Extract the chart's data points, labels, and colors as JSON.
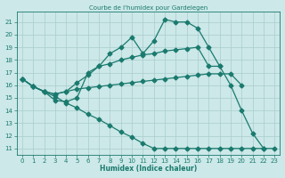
{
  "title": "Courbe de l'humidex pour Gardelegen",
  "xlabel": "Humidex (Indice chaleur)",
  "background_color": "#cce8e8",
  "grid_color": "#aacccc",
  "line_color": "#1a7a6e",
  "xlim": [
    -0.5,
    23.5
  ],
  "ylim": [
    10.5,
    21.8
  ],
  "yticks": [
    11,
    12,
    13,
    14,
    15,
    16,
    17,
    18,
    19,
    20,
    21
  ],
  "xticks": [
    0,
    1,
    2,
    3,
    4,
    5,
    6,
    7,
    8,
    9,
    10,
    11,
    12,
    13,
    14,
    15,
    16,
    17,
    18,
    19,
    20,
    21,
    22,
    23
  ],
  "line1_x": [
    0,
    1,
    2,
    3,
    4,
    5,
    6,
    7,
    8,
    9,
    10,
    11,
    12,
    13,
    14,
    15,
    16,
    17,
    18,
    19,
    20,
    21,
    22
  ],
  "line1_y": [
    16.5,
    15.9,
    15.5,
    14.8,
    14.7,
    15.0,
    17.0,
    17.5,
    18.5,
    19.0,
    19.8,
    18.5,
    19.5,
    21.2,
    21.0,
    21.0,
    20.5,
    19.0,
    17.5,
    16.0,
    14.0,
    12.2,
    11.0
  ],
  "line2_x": [
    0,
    1,
    2,
    3,
    4,
    5,
    6,
    7,
    8,
    9,
    10,
    11,
    12,
    13,
    14,
    15,
    16,
    17,
    18
  ],
  "line2_y": [
    16.5,
    15.9,
    15.5,
    15.3,
    15.5,
    16.2,
    16.8,
    17.5,
    17.7,
    18.0,
    18.2,
    18.4,
    18.5,
    18.7,
    18.8,
    18.9,
    19.0,
    17.5,
    17.5
  ],
  "line3_x": [
    0,
    1,
    2,
    3,
    4,
    5,
    6,
    7,
    8,
    9,
    10,
    11,
    12,
    13,
    14,
    15,
    16,
    17,
    18,
    19,
    20
  ],
  "line3_y": [
    16.5,
    15.9,
    15.5,
    15.3,
    15.5,
    15.7,
    15.8,
    15.9,
    16.0,
    16.1,
    16.2,
    16.3,
    16.4,
    16.5,
    16.6,
    16.7,
    16.8,
    16.9,
    16.9,
    16.9,
    16.0
  ],
  "line4_x": [
    0,
    1,
    2,
    3,
    4,
    5,
    6,
    7,
    8,
    9,
    10,
    11,
    12,
    13,
    14,
    15,
    16,
    17,
    18,
    19,
    20,
    21,
    22,
    23
  ],
  "line4_y": [
    16.5,
    15.9,
    15.5,
    15.1,
    14.6,
    14.2,
    13.7,
    13.3,
    12.8,
    12.3,
    11.9,
    11.4,
    11.0,
    11.0,
    11.0,
    11.0,
    11.0,
    11.0,
    11.0,
    11.0,
    11.0,
    11.0,
    11.0,
    11.0
  ]
}
